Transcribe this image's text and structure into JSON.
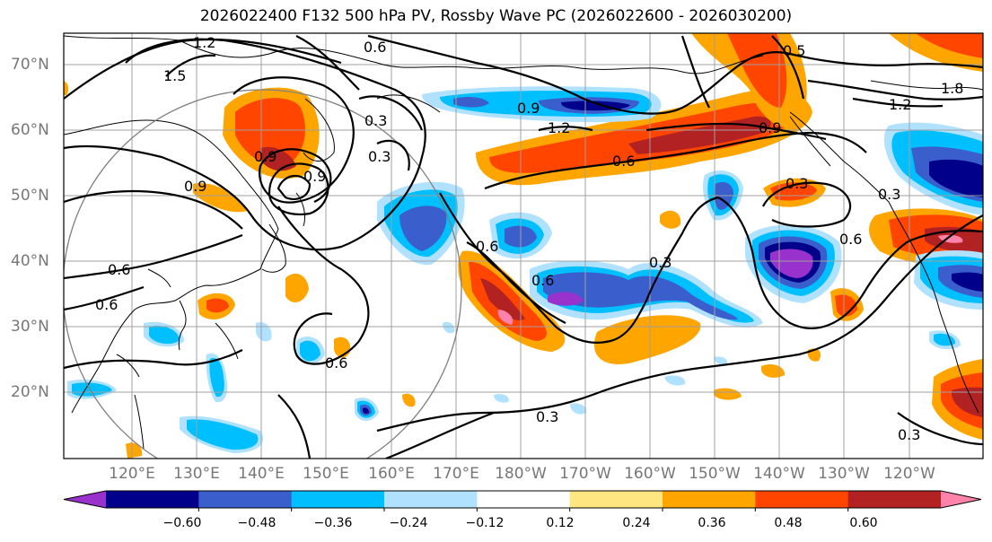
{
  "title": "2026022400 F132 500 hPa PV, Rossby Wave PC (2026022600 - 2026030200)",
  "lat_labels": [
    "70°N",
    "60°N",
    "50°N",
    "40°N",
    "30°N",
    "20°N"
  ],
  "lon_labels": [
    "120°E",
    "130°E",
    "140°E",
    "150°E",
    "160°E",
    "170°E",
    "180°W",
    "170°W",
    "160°W",
    "150°W",
    "140°W",
    "130°W",
    "120°W"
  ],
  "colorbar": {
    "tick_labels": [
      "−0.60",
      "−0.48",
      "−0.36",
      "−0.24",
      "−0.12",
      "0.12",
      "0.24",
      "0.36",
      "0.48",
      "0.60"
    ],
    "colors": [
      "#9932cc",
      "#00008b",
      "#3a5fcd",
      "#00bfff",
      "#b0e2ff",
      "#ffffff",
      "#ffe680",
      "#ffa500",
      "#ff4500",
      "#b22222",
      "#ff82ab"
    ]
  },
  "contour_labels": [
    "1.2",
    "1.5",
    "0.6",
    "0.9",
    "1.2",
    "0.9",
    "0.6",
    "0.3",
    "0.9",
    "0.6",
    "0.6",
    "0.3",
    "0.6",
    "0.9",
    "0.6",
    "0.3",
    "0.3",
    "0.6",
    "0.6",
    "0.3",
    "0.3",
    "1.2",
    "1.8",
    "0.5",
    "0.9",
    "0.3"
  ]
}
